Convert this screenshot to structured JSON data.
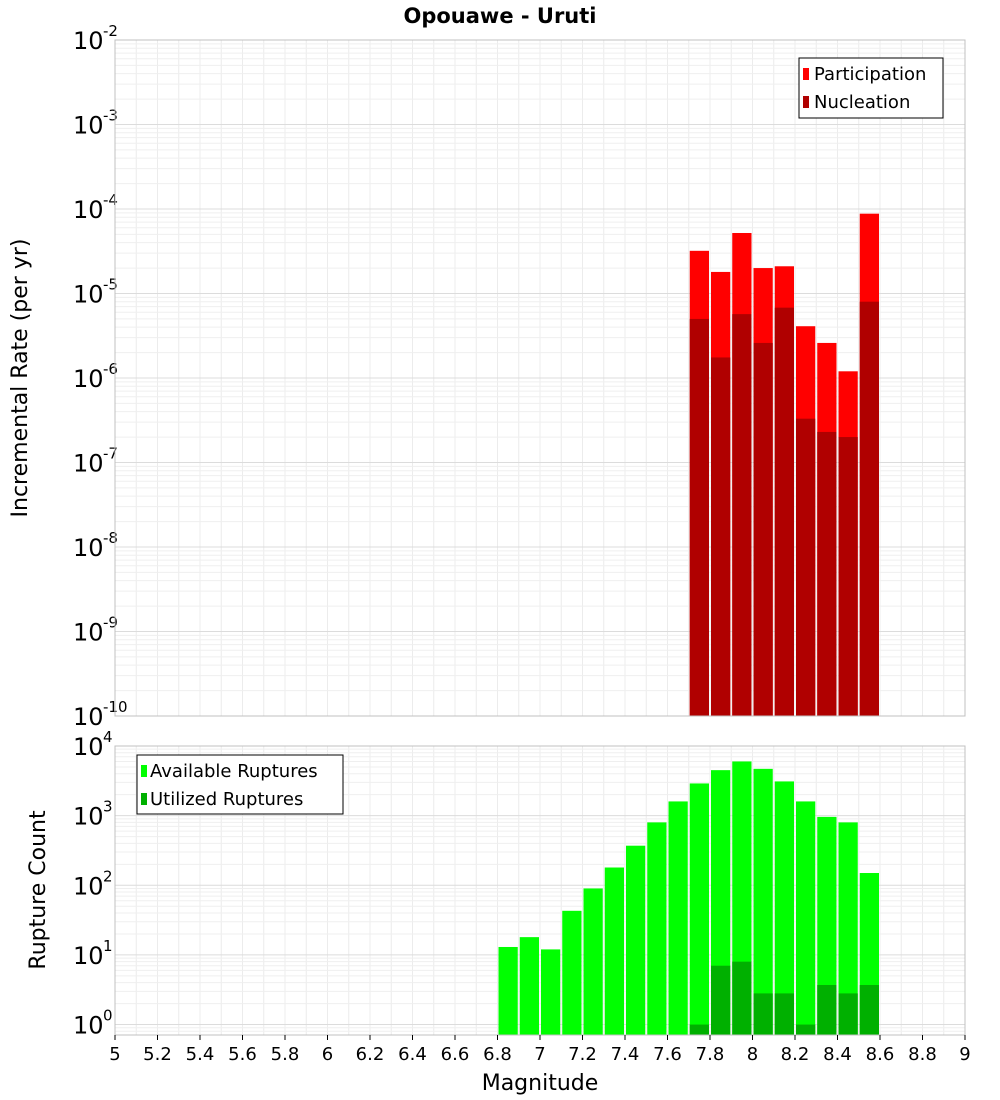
{
  "title": "Opouawe - Uruti",
  "xlabel": "Magnitude",
  "colors": {
    "participation": "#ff0000",
    "nucleation": "#b00000",
    "available": "#00ff00",
    "utilized": "#00b000",
    "grid": "#e8e8e8",
    "frame": "#c0c0c0"
  },
  "chart_data": [
    {
      "type": "bar",
      "name": "rate-panel",
      "ylabel": "Incremental Rate (per yr)",
      "yscale": "log",
      "xlim": [
        5,
        9
      ],
      "ylim_exp": [
        -10,
        -2
      ],
      "ytick_labels": [
        "10",
        "10",
        "10",
        "10",
        "10",
        "10",
        "10",
        "10",
        "10"
      ],
      "ytick_exps": [
        "-10",
        "-9",
        "-8",
        "-7",
        "-6",
        "-5",
        "-4",
        "-3",
        "-2"
      ],
      "legend": {
        "position": "top-right",
        "entries": [
          "Participation",
          "Nucleation"
        ]
      },
      "x": [
        7.7,
        7.8,
        7.9,
        8.0,
        8.1,
        8.2,
        8.3,
        8.4,
        8.5
      ],
      "series": [
        {
          "name": "Participation",
          "values": [
            3.2e-05,
            1.8e-05,
            5.2e-05,
            2e-05,
            2.1e-05,
            4.1e-06,
            2.6e-06,
            1.2e-06,
            8.8e-05
          ]
        },
        {
          "name": "Nucleation",
          "values": [
            5e-06,
            1.75e-06,
            5.7e-06,
            2.6e-06,
            6.8e-06,
            3.3e-07,
            2.3e-07,
            2e-07,
            8e-06
          ]
        }
      ]
    },
    {
      "type": "bar",
      "name": "count-panel",
      "ylabel": "Rupture Count",
      "yscale": "log",
      "xlim": [
        5,
        9
      ],
      "ylim_exp": [
        -0.15,
        4
      ],
      "ytick_labels": [
        "10",
        "10",
        "10",
        "10",
        "10"
      ],
      "ytick_exps": [
        "0",
        "1",
        "2",
        "3",
        "4"
      ],
      "legend": {
        "position": "top-left",
        "entries": [
          "Available Ruptures",
          "Utilized Ruptures"
        ]
      },
      "x": [
        6.8,
        6.9,
        7.0,
        7.1,
        7.2,
        7.3,
        7.4,
        7.5,
        7.6,
        7.7,
        7.8,
        7.9,
        8.0,
        8.1,
        8.2,
        8.3,
        8.4,
        8.5
      ],
      "series": [
        {
          "name": "Available Ruptures",
          "values": [
            13,
            18,
            12,
            43,
            90,
            180,
            370,
            800,
            1600,
            2900,
            4500,
            6000,
            4700,
            3100,
            1600,
            960,
            800,
            150
          ]
        },
        {
          "name": "Utilized Ruptures",
          "values": [
            0,
            0,
            0,
            0,
            0,
            0,
            0,
            0,
            0,
            1,
            7,
            8,
            2.8,
            2.8,
            1,
            3.7,
            2.8,
            3.7
          ]
        }
      ]
    }
  ],
  "xticks": [
    "5",
    "5.2",
    "5.4",
    "5.6",
    "5.8",
    "6",
    "6.2",
    "6.4",
    "6.6",
    "6.8",
    "7",
    "7.2",
    "7.4",
    "7.6",
    "7.8",
    "8",
    "8.2",
    "8.4",
    "8.6",
    "8.8",
    "9"
  ]
}
